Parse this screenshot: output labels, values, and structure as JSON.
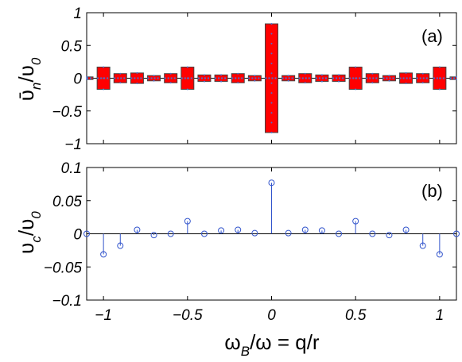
{
  "chart_data": [
    {
      "panel": "(a)",
      "type": "bar",
      "ylabel": "ῡ",
      "ylabel_sub_n": "n",
      "ylabel_slash": "/υ",
      "ylabel_sub_0": "0",
      "xlim": [
        -1.1,
        1.1
      ],
      "ylim": [
        -1,
        1
      ],
      "yticks": [
        1,
        0.5,
        0,
        -0.5,
        -1
      ],
      "ytick_labels": [
        "1",
        "0.5",
        "0",
        "−0.5",
        "−1"
      ],
      "bar_color": "#ff0000",
      "marker_color": "#4a6fd0",
      "x": [
        -1.1,
        -1.0,
        -0.9,
        -0.8,
        -0.7,
        -0.6,
        -0.5,
        -0.4,
        -0.3,
        -0.2,
        -0.1,
        0.0,
        0.1,
        0.2,
        0.3,
        0.4,
        0.5,
        0.6,
        0.7,
        0.8,
        0.9,
        1.0,
        1.1
      ],
      "half_width": [
        0.02,
        0.17,
        0.07,
        0.08,
        0.04,
        0.07,
        0.17,
        0.05,
        0.05,
        0.07,
        0.04,
        0.83,
        0.04,
        0.07,
        0.05,
        0.05,
        0.17,
        0.07,
        0.04,
        0.08,
        0.07,
        0.17,
        0.02
      ]
    },
    {
      "panel": "(b)",
      "type": "stem",
      "ylabel": "υ",
      "ylabel_sub_c": "c",
      "ylabel_slash": "/υ",
      "ylabel_sub_0": "0",
      "xlabel": "ω",
      "xlabel_sub": "B",
      "xlabel_rest": "/ω = q/r",
      "xlim": [
        -1.1,
        1.1
      ],
      "ylim": [
        -0.1,
        0.1
      ],
      "yticks": [
        0.1,
        0.05,
        0,
        -0.05,
        -0.1
      ],
      "ytick_labels": [
        "0.1",
        "0.05",
        "0",
        "−0.05",
        "−0.1"
      ],
      "xticks": [
        -1,
        -0.5,
        0,
        0.5,
        1
      ],
      "xtick_labels": [
        "−1",
        "−0.5",
        "0",
        "0.5",
        "1"
      ],
      "stem_color": "#3355cc",
      "x": [
        -1.1,
        -1.0,
        -0.9,
        -0.8,
        -0.7,
        -0.6,
        -0.5,
        -0.4,
        -0.3,
        -0.2,
        -0.1,
        0.0,
        0.1,
        0.2,
        0.3,
        0.4,
        0.5,
        0.6,
        0.7,
        0.8,
        0.9,
        1.0,
        1.1
      ],
      "y": [
        0.0,
        -0.031,
        -0.018,
        0.006,
        -0.002,
        0.0,
        0.019,
        0.0,
        0.005,
        0.006,
        0.001,
        0.077,
        0.001,
        0.006,
        0.005,
        0.0,
        0.019,
        0.0,
        -0.002,
        0.006,
        -0.018,
        -0.031,
        0.0
      ]
    }
  ]
}
